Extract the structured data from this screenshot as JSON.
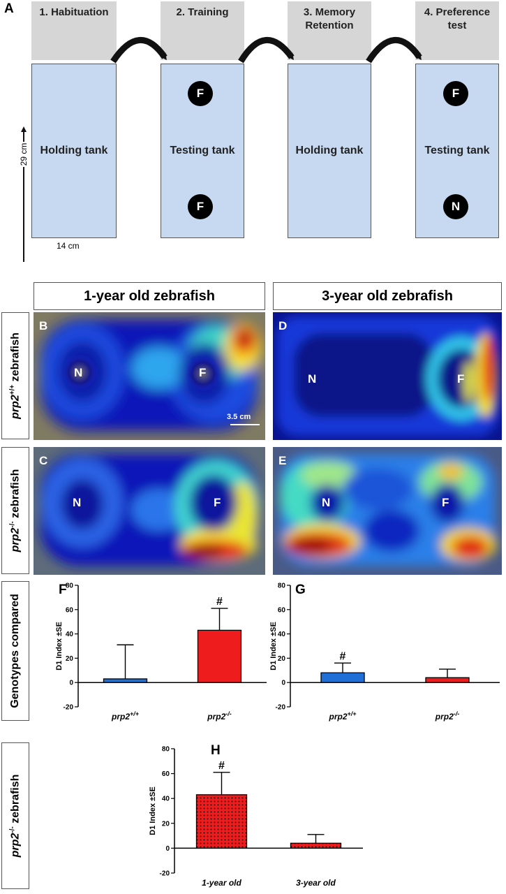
{
  "panel_a": {
    "letter": "A",
    "steps": [
      "1. Habituation",
      "2. Training",
      "3. Memory Retention",
      "4. Preference test"
    ],
    "step_lines": [
      [
        "1. Habituation"
      ],
      [
        "2. Training"
      ],
      [
        "3. Memory",
        "Retention"
      ],
      [
        "4. Preference",
        "test"
      ]
    ],
    "tanks": [
      "Holding tank",
      "Testing tank",
      "Holding tank",
      "Testing tank"
    ],
    "training_markers": [
      "F",
      "F"
    ],
    "preference_markers": [
      "F",
      "N"
    ],
    "height_label": "29 cm",
    "width_label": "14 cm"
  },
  "heatmaps": {
    "col_titles": [
      "1-year old zebrafish",
      "3-year old zebrafish"
    ],
    "row_wt": {
      "prefix": "prp2",
      "sup": "+/+",
      "suffix": " zebrafish"
    },
    "row_ko": {
      "prefix": "prp2",
      "sup": "-/-",
      "suffix": " zebrafish"
    },
    "letters": {
      "B": "B",
      "C": "C",
      "D": "D",
      "E": "E"
    },
    "marker_n": "N",
    "marker_f": "F",
    "scale_bar": "3.5 cm"
  },
  "genotypes_label": "Genotypes compared",
  "ko_row_label": {
    "prefix": "prp2",
    "sup": "-/-",
    "suffix": " zebrafish"
  },
  "chart_data": [
    {
      "panel": "F",
      "type": "bar",
      "categories": [
        {
          "base": "prp2",
          "sup": "+/+"
        },
        {
          "base": "prp2",
          "sup": "-/-"
        }
      ],
      "values": [
        3,
        43
      ],
      "errors": [
        28,
        18
      ],
      "colors": [
        "#1f6fd6",
        "#ee1c1c"
      ],
      "patterns": [
        "solid",
        "solid"
      ],
      "annotations": [
        "",
        "#"
      ],
      "ylabel": "D1 Index ±SE",
      "ylim": [
        -20,
        80
      ],
      "yticks": [
        -20,
        0,
        20,
        40,
        60,
        80
      ]
    },
    {
      "panel": "G",
      "type": "bar",
      "categories": [
        {
          "base": "prp2",
          "sup": "+/+"
        },
        {
          "base": "prp2",
          "sup": "-/-"
        }
      ],
      "values": [
        8,
        4
      ],
      "errors": [
        8,
        7
      ],
      "colors": [
        "#1f6fd6",
        "#ee1c1c"
      ],
      "patterns": [
        "solid",
        "solid"
      ],
      "annotations": [
        "#",
        ""
      ],
      "ylabel": "D1 Index ±SE",
      "ylim": [
        -20,
        80
      ],
      "yticks": [
        -20,
        0,
        20,
        40,
        60,
        80
      ]
    },
    {
      "panel": "H",
      "type": "bar",
      "categories": [
        {
          "base": "1-year old",
          "sup": ""
        },
        {
          "base": "3-year old",
          "sup": ""
        }
      ],
      "values": [
        43,
        4
      ],
      "errors": [
        18,
        7
      ],
      "colors": [
        "#ee1c1c",
        "#ee1c1c"
      ],
      "patterns": [
        "dots",
        "dots"
      ],
      "annotations": [
        "#",
        ""
      ],
      "ylabel": "D1 Index ±SE",
      "ylim": [
        -20,
        80
      ],
      "yticks": [
        -20,
        0,
        20,
        40,
        60,
        80
      ]
    }
  ]
}
